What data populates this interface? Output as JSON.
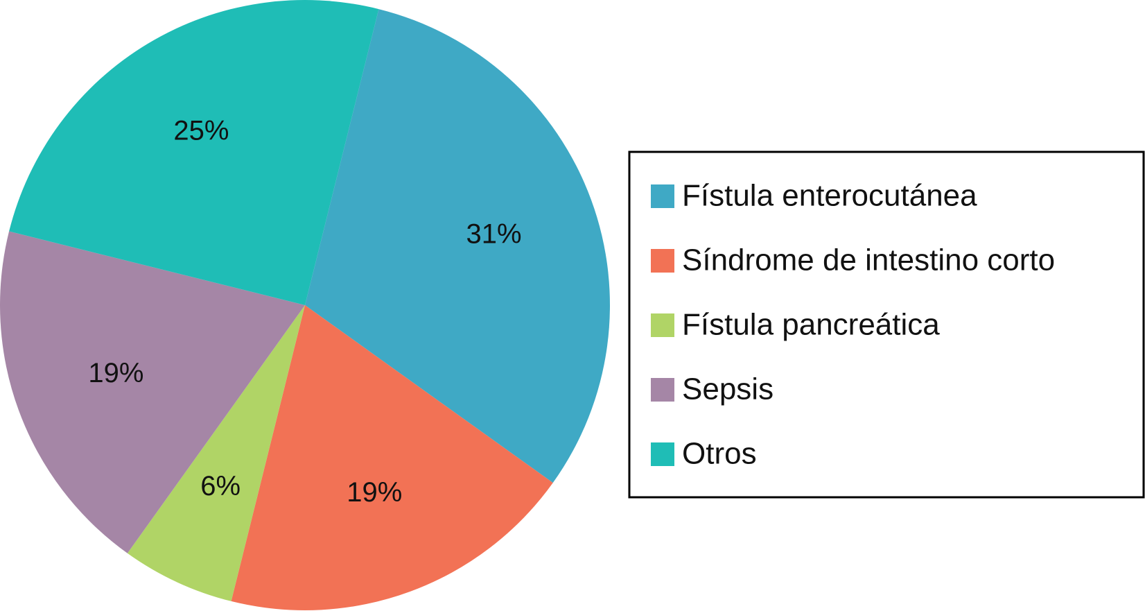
{
  "chart_data": {
    "type": "pie",
    "start_angle_deg": 14,
    "direction": "clockwise",
    "slices": [
      {
        "label": "Fístula enterocutánea",
        "value": 31,
        "display": "31%",
        "color": "#3FA9C5"
      },
      {
        "label": "Síndrome de intestino corto",
        "value": 19,
        "display": "19%",
        "color": "#F27255"
      },
      {
        "label": "Fístula pancreática",
        "value": 6,
        "display": "6%",
        "color": "#B0D466"
      },
      {
        "label": "Sepsis",
        "value": 19,
        "display": "19%",
        "color": "#A586A6"
      },
      {
        "label": "Otros",
        "value": 25,
        "display": "25%",
        "color": "#1FBDB6"
      }
    ],
    "legend_position": "right"
  }
}
